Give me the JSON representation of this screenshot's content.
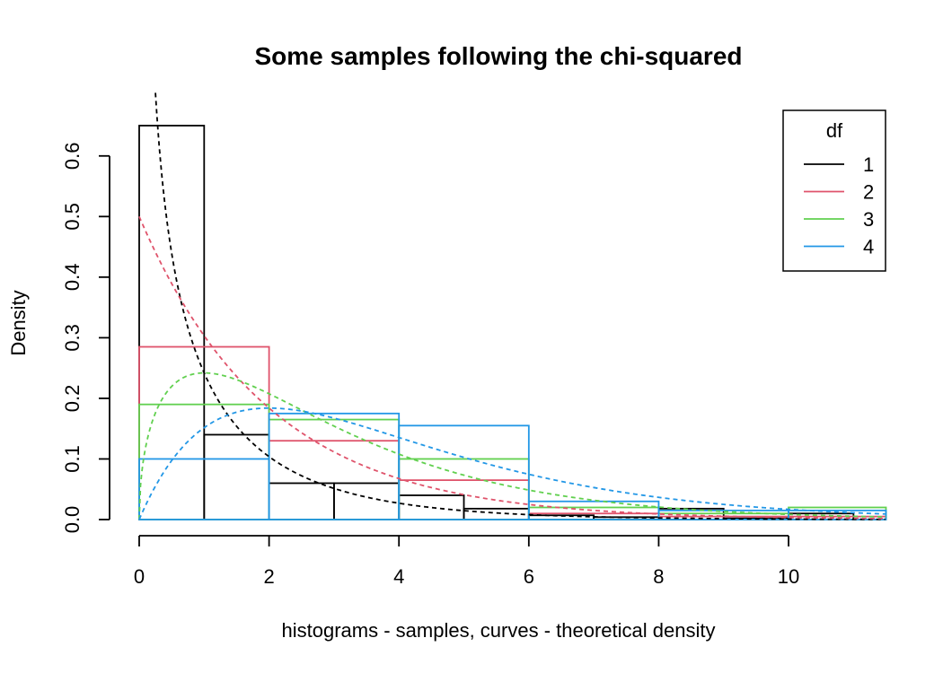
{
  "chart_data": {
    "type": "histogram",
    "title": "Some samples following the chi-squared",
    "xlabel": "histograms - samples, curves - theoretical density",
    "ylabel": "Density",
    "xlim": [
      0,
      11.5
    ],
    "ylim": [
      0,
      0.65
    ],
    "x_ticks": [
      0,
      2,
      4,
      6,
      8,
      10
    ],
    "x_tick_labels": [
      "0",
      "2",
      "4",
      "6",
      "8",
      "10"
    ],
    "y_ticks": [
      0.0,
      0.1,
      0.2,
      0.3,
      0.4,
      0.5,
      0.6
    ],
    "y_tick_labels": [
      "0.0",
      "0.1",
      "0.2",
      "0.3",
      "0.4",
      "0.5",
      "0.6"
    ],
    "grid": false,
    "legend": {
      "title": "df",
      "placement": "top-right"
    },
    "series": [
      {
        "name": "1",
        "color": "#000000",
        "df": 1,
        "bins": [
          {
            "x0": 0,
            "x1": 1,
            "density": 0.65
          },
          {
            "x0": 1,
            "x1": 2,
            "density": 0.14
          },
          {
            "x0": 2,
            "x1": 3,
            "density": 0.06
          },
          {
            "x0": 3,
            "x1": 4,
            "density": 0.06
          },
          {
            "x0": 4,
            "x1": 5,
            "density": 0.04
          },
          {
            "x0": 5,
            "x1": 6,
            "density": 0.018
          },
          {
            "x0": 6,
            "x1": 7,
            "density": 0.007
          },
          {
            "x0": 7,
            "x1": 8,
            "density": 0.004
          },
          {
            "x0": 8,
            "x1": 9,
            "density": 0.018
          },
          {
            "x0": 9,
            "x1": 10,
            "density": 0.002
          },
          {
            "x0": 10,
            "x1": 11,
            "density": 0.01
          }
        ]
      },
      {
        "name": "2",
        "color": "#df536b",
        "df": 2,
        "bins": [
          {
            "x0": 0,
            "x1": 2,
            "density": 0.285
          },
          {
            "x0": 2,
            "x1": 4,
            "density": 0.13
          },
          {
            "x0": 4,
            "x1": 6,
            "density": 0.065
          },
          {
            "x0": 6,
            "x1": 8,
            "density": 0.01
          },
          {
            "x0": 8,
            "x1": 10,
            "density": 0.005
          },
          {
            "x0": 10,
            "x1": 12,
            "density": 0.005
          }
        ]
      },
      {
        "name": "3",
        "color": "#61d04f",
        "df": 3,
        "bins": [
          {
            "x0": 0,
            "x1": 2,
            "density": 0.19
          },
          {
            "x0": 2,
            "x1": 4,
            "density": 0.165
          },
          {
            "x0": 4,
            "x1": 6,
            "density": 0.1
          },
          {
            "x0": 6,
            "x1": 8,
            "density": 0.02
          },
          {
            "x0": 8,
            "x1": 10,
            "density": 0.01
          },
          {
            "x0": 10,
            "x1": 12,
            "density": 0.02
          }
        ]
      },
      {
        "name": "4",
        "color": "#2297e6",
        "df": 4,
        "bins": [
          {
            "x0": 0,
            "x1": 2,
            "density": 0.1
          },
          {
            "x0": 2,
            "x1": 4,
            "density": 0.175
          },
          {
            "x0": 4,
            "x1": 6,
            "density": 0.155
          },
          {
            "x0": 6,
            "x1": 8,
            "density": 0.03
          },
          {
            "x0": 8,
            "x1": 10,
            "density": 0.015
          },
          {
            "x0": 10,
            "x1": 12,
            "density": 0.015
          }
        ]
      }
    ],
    "curves": {
      "kind": "theoretical chi-squared density",
      "style": "dashed"
    }
  }
}
